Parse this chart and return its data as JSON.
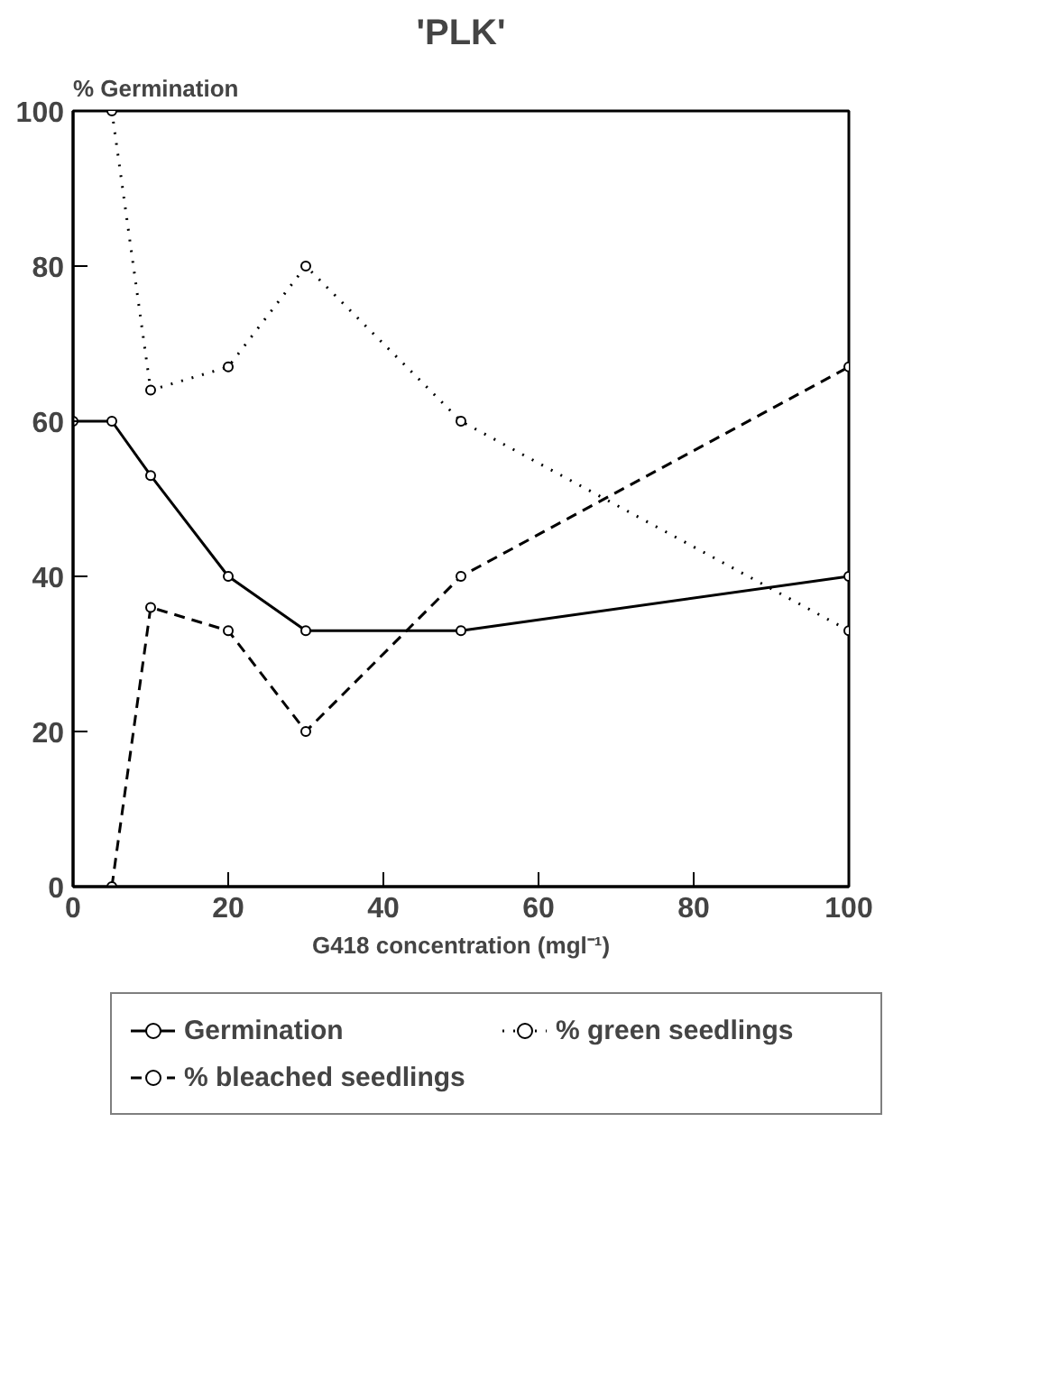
{
  "chart_data": {
    "type": "line",
    "title": "'PLK'",
    "ylabel": "% Germination",
    "xlabel": "G418 concentration (mgl⁻¹)",
    "xlim": [
      0,
      100
    ],
    "xticks": [
      0,
      20,
      40,
      60,
      80,
      100
    ],
    "ylim": [
      0,
      100
    ],
    "yticks": [
      0,
      20,
      40,
      60,
      80,
      100
    ],
    "grid": false,
    "legend": "bottom",
    "marker": "circle",
    "series": [
      {
        "name": "Germination",
        "color": "#000000",
        "line_style": "solid",
        "x": [
          0,
          5,
          10,
          20,
          30,
          50,
          100
        ],
        "values": [
          60,
          60,
          53,
          40,
          33,
          33,
          40
        ]
      },
      {
        "name": "% green seedlings",
        "color": "#000000",
        "line_style": "dotted",
        "x": [
          5,
          10,
          20,
          30,
          50,
          100
        ],
        "values": [
          100,
          64,
          67,
          80,
          60,
          33
        ]
      },
      {
        "name": "% bleached seedlings",
        "color": "#000000",
        "line_style": "dashed",
        "x": [
          5,
          10,
          20,
          30,
          50,
          100
        ],
        "values": [
          0,
          36,
          33,
          20,
          40,
          67
        ]
      }
    ]
  }
}
